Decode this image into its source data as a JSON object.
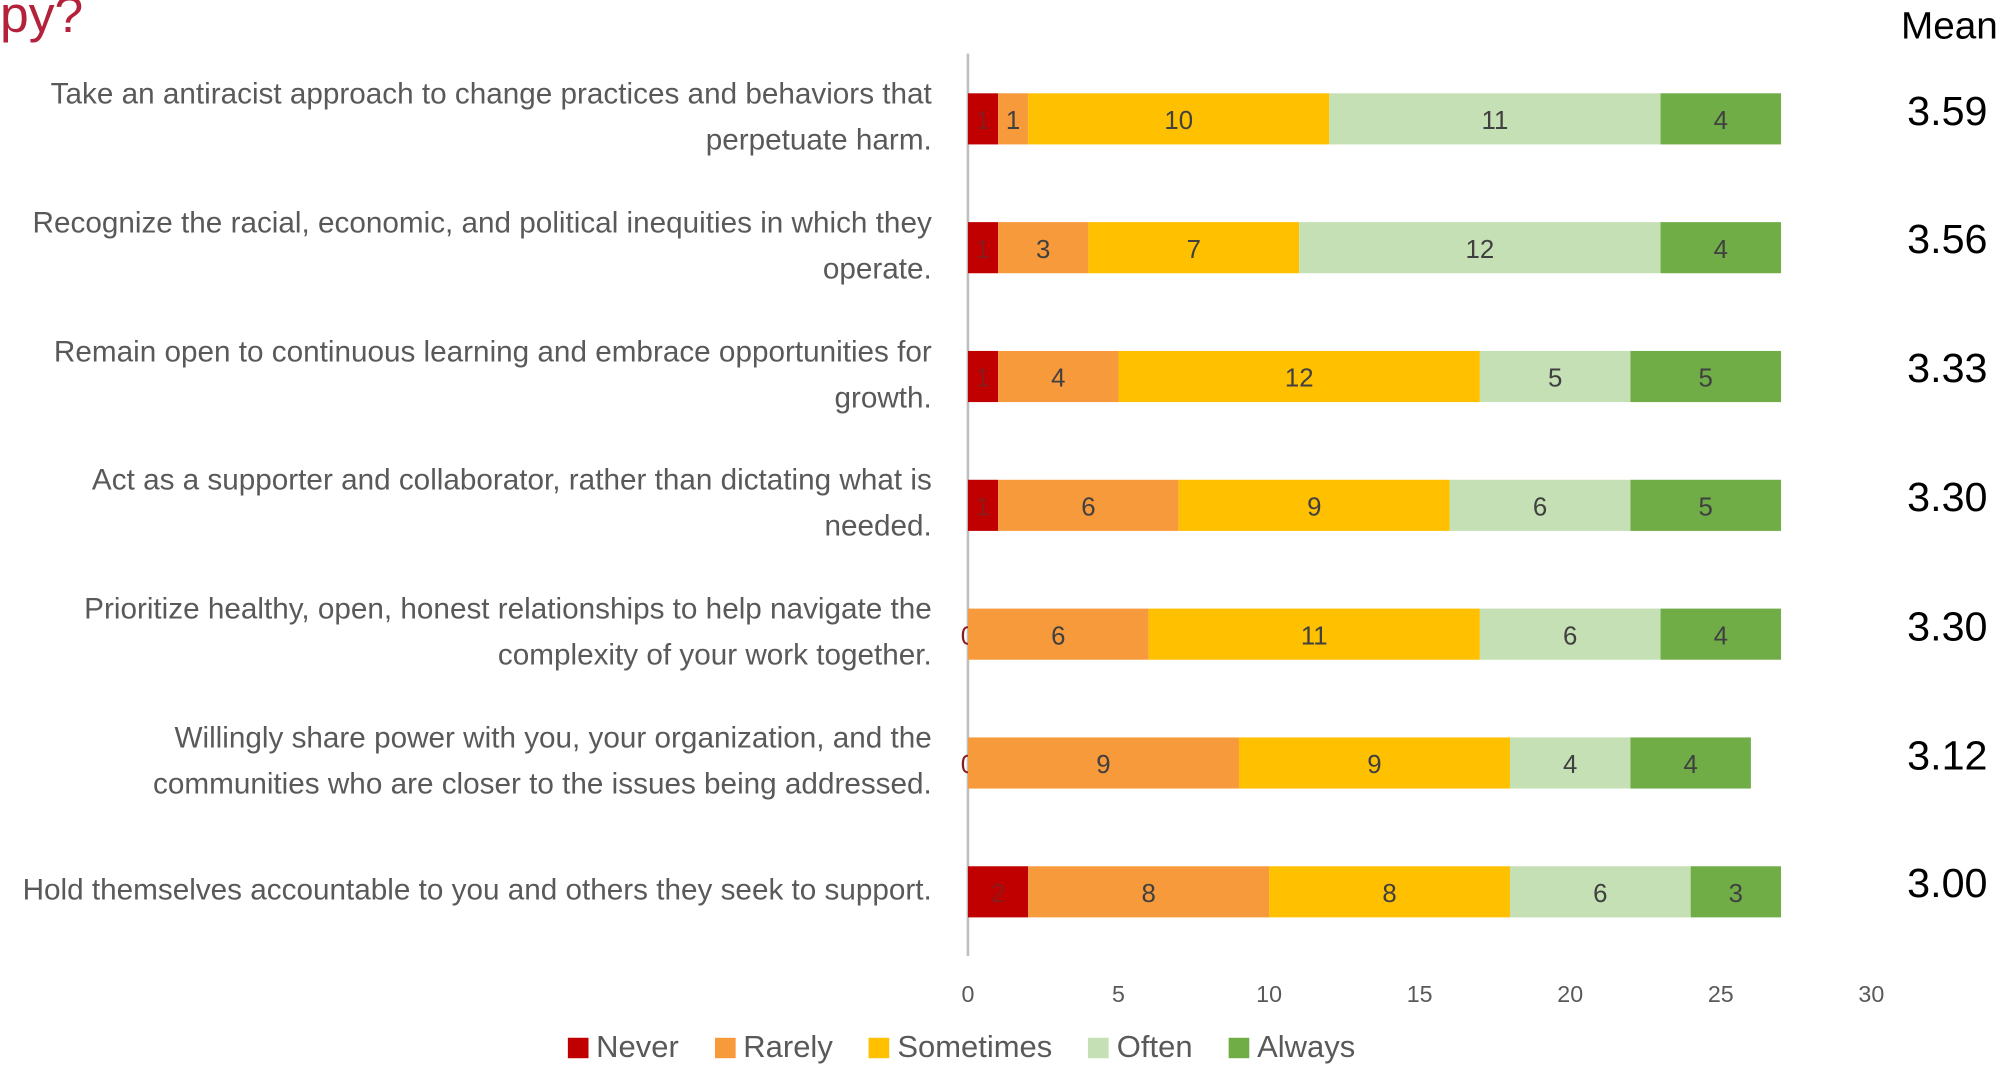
{
  "chart_data": {
    "type": "stacked-bar-horizontal",
    "title": "py?",
    "mean_header": "Mean",
    "categories": [
      "Take an antiracist approach to change practices and behaviors that perpetuate harm.",
      "Recognize the racial, economic, and political inequities in which they operate.",
      "Remain open to continuous learning and embrace opportunities for growth.",
      "Act as a supporter and collaborator, rather than dictating what is needed.",
      "Prioritize healthy, open, honest relationships to help navigate the complexity of your work together.",
      "Willingly share power with you, your organization, and the communities who are closer to the issues being addressed.",
      "Hold themselves accountable to you and others they seek to support."
    ],
    "series": [
      {
        "name": "Never",
        "color": "#c00000",
        "values": [
          1,
          1,
          1,
          1,
          0,
          0,
          2
        ]
      },
      {
        "name": "Rarely",
        "color": "#f79a3c",
        "values": [
          1,
          3,
          4,
          6,
          6,
          9,
          8
        ]
      },
      {
        "name": "Sometimes",
        "color": "#ffc000",
        "values": [
          10,
          7,
          12,
          9,
          11,
          9,
          8
        ]
      },
      {
        "name": "Often",
        "color": "#c5e0b4",
        "values": [
          11,
          12,
          5,
          6,
          6,
          4,
          6
        ]
      },
      {
        "name": "Always",
        "color": "#70ad47",
        "values": [
          4,
          4,
          5,
          5,
          4,
          4,
          3
        ]
      }
    ],
    "means": [
      3.59,
      3.56,
      3.33,
      3.3,
      3.3,
      3.12,
      3.0
    ],
    "mean_labels": [
      "3.59",
      "3.56",
      "3.33",
      "3.30",
      "3.30",
      "3.12",
      "3.00"
    ],
    "xlim": [
      0,
      30
    ],
    "xticks": [
      0,
      5,
      10,
      15,
      20,
      25,
      30
    ]
  }
}
